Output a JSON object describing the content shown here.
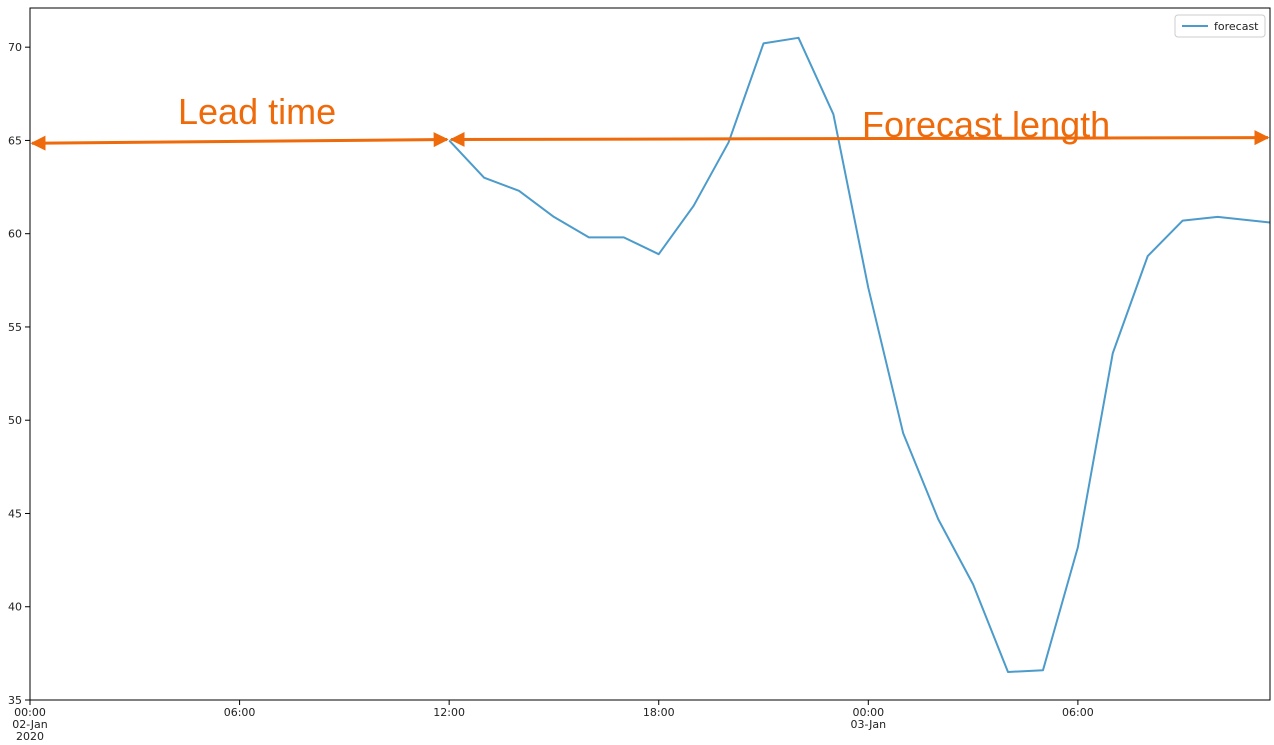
{
  "chart_data": {
    "type": "line",
    "title": "",
    "xlabel": "",
    "ylabel": "",
    "ylim": [
      35,
      72.1
    ],
    "xlim": [
      "2020-01-02 00:00",
      "2020-01-03 11:30"
    ],
    "grid": false,
    "legend_position": "top-right",
    "x_tick_labels": [
      {
        "at": "2020-01-02 00:00",
        "lines": [
          "00:00",
          "02-Jan",
          "2020"
        ]
      },
      {
        "at": "2020-01-02 06:00",
        "lines": [
          "06:00"
        ]
      },
      {
        "at": "2020-01-02 12:00",
        "lines": [
          "12:00"
        ]
      },
      {
        "at": "2020-01-02 18:00",
        "lines": [
          "18:00"
        ]
      },
      {
        "at": "2020-01-03 00:00",
        "lines": [
          "00:00",
          "03-Jan"
        ]
      },
      {
        "at": "2020-01-03 06:00",
        "lines": [
          "06:00"
        ]
      }
    ],
    "y_ticks": [
      35,
      40,
      45,
      50,
      55,
      60,
      65,
      70
    ],
    "series": [
      {
        "name": "forecast",
        "color": "#4C9BCB",
        "x": [
          "2020-01-02 12:00",
          "2020-01-02 13:00",
          "2020-01-02 14:00",
          "2020-01-02 15:00",
          "2020-01-02 16:00",
          "2020-01-02 17:00",
          "2020-01-02 18:00",
          "2020-01-02 19:00",
          "2020-01-02 20:00",
          "2020-01-02 21:00",
          "2020-01-02 22:00",
          "2020-01-02 23:00",
          "2020-01-03 00:00",
          "2020-01-03 01:00",
          "2020-01-03 02:00",
          "2020-01-03 03:00",
          "2020-01-03 04:00",
          "2020-01-03 05:00",
          "2020-01-03 06:00",
          "2020-01-03 07:00",
          "2020-01-03 08:00",
          "2020-01-03 09:00",
          "2020-01-03 10:00",
          "2020-01-03 11:00",
          "2020-01-03 11:30"
        ],
        "y": [
          65.0,
          63.0,
          62.3,
          60.9,
          59.8,
          59.8,
          58.9,
          61.5,
          64.9,
          70.2,
          70.5,
          66.4,
          57.1,
          49.3,
          44.7,
          41.2,
          36.5,
          36.6,
          43.2,
          53.6,
          58.8,
          60.7,
          60.9,
          60.7,
          60.6
        ]
      }
    ],
    "annotations": [
      {
        "label": "Lead time",
        "color": "#EE6A0A",
        "y_at_start": 64.85,
        "y_at_end": 65.05,
        "from": "2020-01-02 00:00",
        "to": "2020-01-02 12:00"
      },
      {
        "label": "Forecast length",
        "color": "#EE6A0A",
        "y_at_start": 65.05,
        "y_at_end": 65.15,
        "from": "2020-01-02 12:00",
        "to": "2020-01-03 11:30"
      }
    ]
  }
}
